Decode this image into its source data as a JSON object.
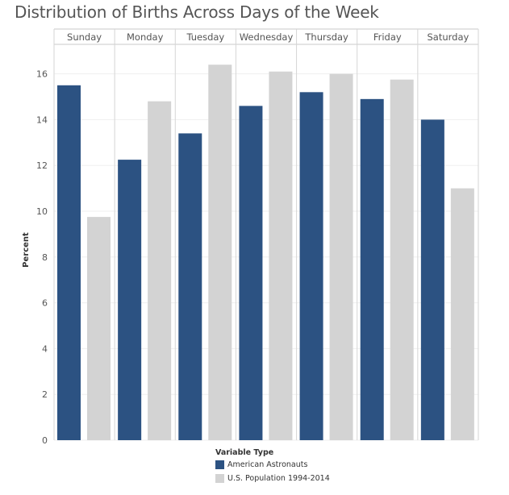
{
  "title": "Distribution of Births Across Days of the Week",
  "chart_data": {
    "type": "bar",
    "categories": [
      "Sunday",
      "Monday",
      "Tuesday",
      "Wednesday",
      "Thursday",
      "Friday",
      "Saturday"
    ],
    "series": [
      {
        "name": "American Astronauts",
        "color": "#2c5282",
        "values": [
          15.5,
          12.25,
          13.4,
          14.6,
          15.2,
          14.9,
          14.0
        ]
      },
      {
        "name": "U.S. Population 1994-2014",
        "color": "#d3d3d3",
        "values": [
          9.75,
          14.8,
          16.4,
          16.1,
          16.0,
          15.75,
          11.0
        ]
      }
    ],
    "ylabel": "Percent",
    "ylim": [
      0,
      17
    ],
    "yticks": [
      0,
      2,
      4,
      6,
      8,
      10,
      12,
      14,
      16
    ],
    "grid": true,
    "legend_title": "Variable Type",
    "legend_position": "bottom"
  }
}
